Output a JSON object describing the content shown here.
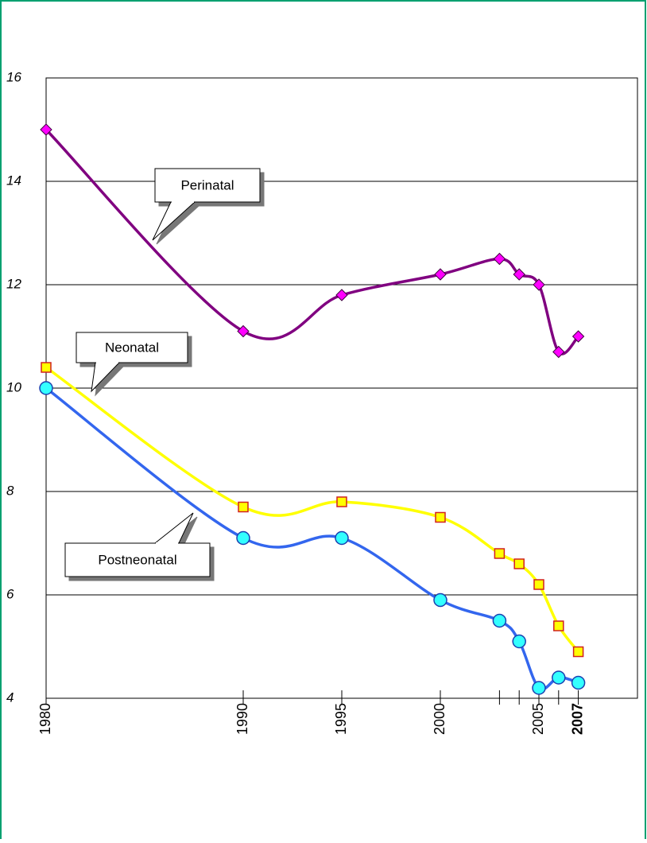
{
  "chart_data": {
    "type": "line",
    "x": [
      1980,
      1990,
      1995,
      2000,
      2003,
      2004,
      2005,
      2006,
      2007
    ],
    "series": [
      {
        "name": "Perinatal",
        "color": "#800080",
        "marker": "diamond",
        "marker_fill": "#ff00ff",
        "values": [
          15.0,
          11.1,
          11.8,
          12.2,
          12.5,
          12.2,
          12.0,
          10.7,
          11.0
        ]
      },
      {
        "name": "Neonatal",
        "color": "#ffff00",
        "marker": "square",
        "marker_fill": "#ffff00",
        "values": [
          10.4,
          7.7,
          7.8,
          7.5,
          6.8,
          6.6,
          6.2,
          5.4,
          4.9
        ]
      },
      {
        "name": "Postneonatal",
        "color": "#3366ee",
        "marker": "circle",
        "marker_fill": "#33ffff",
        "values": [
          10.0,
          7.1,
          7.1,
          5.9,
          5.5,
          5.1,
          4.2,
          4.4,
          4.3
        ]
      }
    ],
    "xlim": [
      1980,
      2010
    ],
    "xticks": [
      1980,
      1990,
      1995,
      2000,
      2005,
      2007
    ],
    "ylim": [
      4,
      16
    ],
    "yticks": [
      4,
      6,
      8,
      10,
      12,
      14,
      16
    ],
    "grid": true
  }
}
